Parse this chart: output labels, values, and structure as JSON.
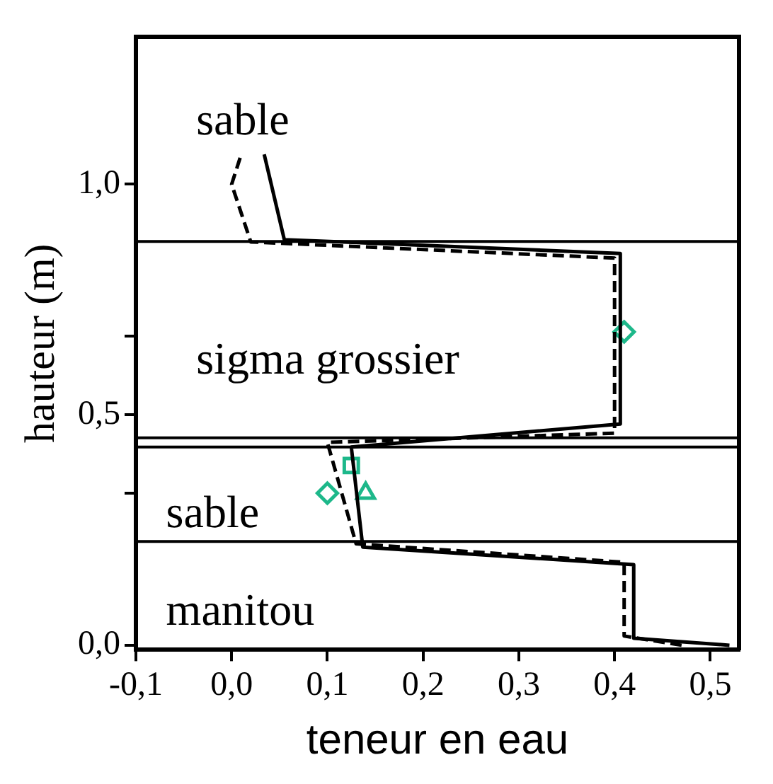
{
  "chart_data": {
    "type": "line",
    "xlabel": "teneur en eau",
    "ylabel": "hauteur (m)",
    "xlim": [
      -0.1,
      0.53
    ],
    "ylim": [
      -0.01,
      1.32
    ],
    "xticks": [
      {
        "value": -0.1,
        "label": "-0,1"
      },
      {
        "value": 0,
        "label": "0,0"
      },
      {
        "value": 0.1,
        "label": "0,1"
      },
      {
        "value": 0.2,
        "label": "0,2"
      },
      {
        "value": 0.3,
        "label": "0,3"
      },
      {
        "value": 0.4,
        "label": "0,4"
      },
      {
        "value": 0.5,
        "label": "0,5"
      }
    ],
    "yticks": [
      {
        "value": 0,
        "label": "0,0"
      },
      {
        "value": 0.33,
        "label": null
      },
      {
        "value": 0.67,
        "label": null
      },
      {
        "value": 1.0,
        "label": "1,0"
      },
      {
        "value": 0.5,
        "label": "0,5"
      }
    ],
    "grid": false,
    "legend": false,
    "series": [
      {
        "color": "#000000",
        "line_style": "solid",
        "x": [
          0.52,
          0.42,
          0.42,
          0.137,
          0.125,
          0.406,
          0.406,
          0.055,
          0.034
        ],
        "values": [
          0.0,
          0.015,
          0.175,
          0.213,
          0.43,
          0.48,
          0.85,
          0.88,
          1.065
        ]
      },
      {
        "color": "#000000",
        "line_style": "dashed",
        "x": [
          0.47,
          0.41,
          0.41,
          0.13,
          0.1,
          0.4,
          0.4,
          0.02,
          0.0,
          0.01
        ],
        "values": [
          0.0,
          0.02,
          0.18,
          0.22,
          0.44,
          0.46,
          0.84,
          0.875,
          1.0,
          1.065
        ]
      },
      {
        "type": "scatter",
        "color": "#1db88a",
        "marker": "diamond",
        "x": [
          0.41,
          0.1
        ],
        "values": [
          0.68,
          0.33
        ]
      },
      {
        "type": "scatter",
        "color": "#1db88a",
        "marker": "triangle",
        "x": [
          0.14
        ],
        "values": [
          0.33
        ]
      },
      {
        "type": "scatter",
        "color": "#1db88a",
        "marker": "square",
        "x": [
          0.125
        ],
        "values": [
          0.39
        ]
      }
    ],
    "ref_lines": [
      {
        "axis": "y",
        "value": 0.876,
        "color": "#000000"
      },
      {
        "axis": "y",
        "value": 0.45,
        "color": "#000000"
      },
      {
        "axis": "y",
        "value": 0.43,
        "color": "#000000"
      },
      {
        "axis": "y",
        "value": 0.225,
        "color": "#000000"
      }
    ],
    "annotations": [
      "sable",
      "sigma grossier",
      "sable",
      "manitou"
    ]
  }
}
